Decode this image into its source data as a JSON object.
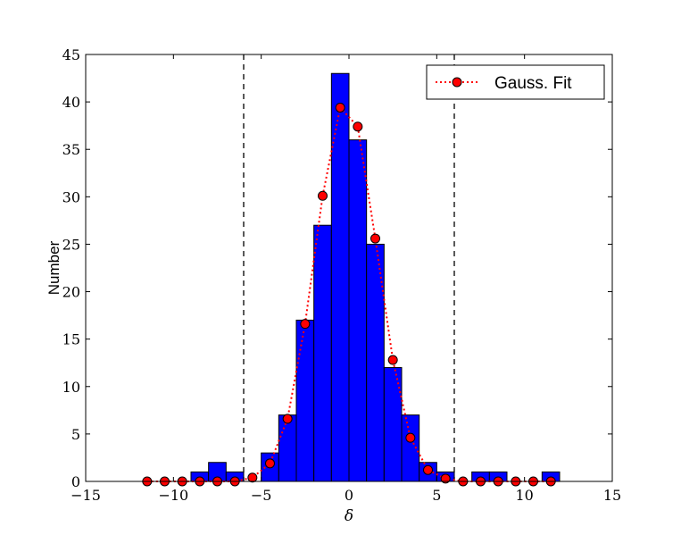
{
  "chart_data": {
    "type": "bar",
    "xlabel": "δ",
    "ylabel": "Number",
    "xlim": [
      -15,
      15
    ],
    "ylim": [
      0,
      45
    ],
    "x_ticks": [
      -15,
      -10,
      -5,
      0,
      5,
      10,
      15
    ],
    "x_tick_labels": [
      "−15",
      "−10",
      "−5",
      "0",
      "5",
      "10",
      "15"
    ],
    "y_ticks": [
      0,
      5,
      10,
      15,
      20,
      25,
      30,
      35,
      40,
      45
    ],
    "y_tick_labels": [
      "0",
      "5",
      "10",
      "15",
      "20",
      "25",
      "30",
      "35",
      "40",
      "45"
    ],
    "grid": false,
    "legend_position": "top-right",
    "bar_color": "#0000ff",
    "fit_color": "#ff0000",
    "bin_width": 1,
    "bins": {
      "left_edges": [
        -12,
        -11,
        -10,
        -9,
        -8,
        -7,
        -6,
        -5,
        -4,
        -3,
        -2,
        -1,
        0,
        1,
        2,
        3,
        4,
        5,
        6,
        7,
        8,
        9,
        10,
        11
      ],
      "counts": [
        0,
        0,
        0,
        1,
        2,
        1,
        0,
        3,
        7,
        17,
        27,
        43,
        36,
        25,
        12,
        7,
        2,
        1,
        0,
        1,
        1,
        0,
        0,
        1
      ]
    },
    "series": [
      {
        "name": "Gauss. Fit",
        "style": "dotted line with circle markers",
        "x": [
          -11.5,
          -10.5,
          -9.5,
          -8.5,
          -7.5,
          -6.5,
          -5.5,
          -4.5,
          -3.5,
          -2.5,
          -1.5,
          -0.5,
          0.5,
          1.5,
          2.5,
          3.5,
          4.5,
          5.5,
          6.5,
          7.5,
          8.5,
          9.5,
          10.5,
          11.5
        ],
        "y": [
          0,
          0,
          0,
          0,
          0,
          0,
          0.4,
          1.9,
          6.6,
          16.6,
          30.1,
          39.4,
          37.4,
          25.6,
          12.8,
          4.6,
          1.2,
          0.3,
          0,
          0,
          0,
          0,
          0,
          0
        ]
      }
    ],
    "vlines": [
      -6,
      6
    ]
  }
}
